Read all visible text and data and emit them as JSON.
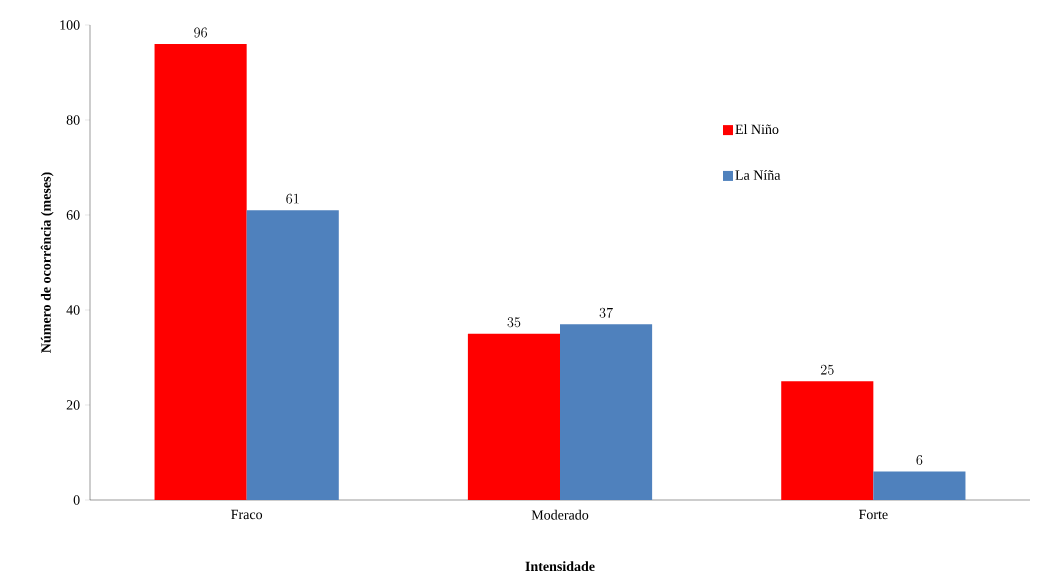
{
  "chart_data": {
    "type": "bar",
    "xlabel": "Intensidade",
    "ylabel": "Número de ocorrência (meses)",
    "categories": [
      "Fraco",
      "Moderado",
      "Forte"
    ],
    "series": [
      {
        "name": "El Niño",
        "color": "#ff0000",
        "values": [
          96,
          35,
          25
        ]
      },
      {
        "name": "La Níña",
        "color": "#4f81bd",
        "values": [
          61,
          37,
          6
        ]
      }
    ],
    "ylim": [
      0,
      100
    ],
    "yticks": [
      0,
      20,
      40,
      60,
      80,
      100
    ],
    "data_labels": true,
    "legend": "right",
    "grid": false
  }
}
